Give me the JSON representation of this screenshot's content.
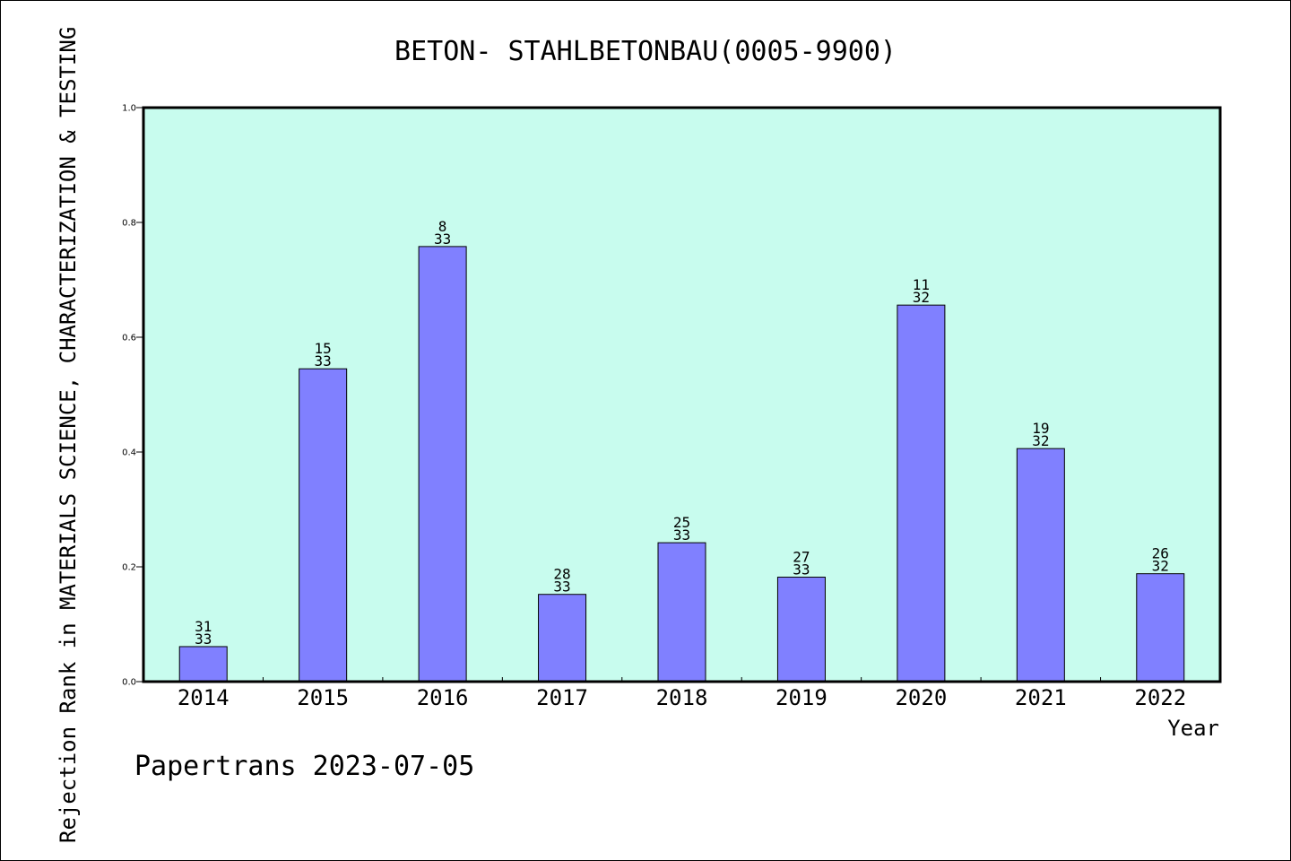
{
  "chart_data": {
    "type": "bar",
    "title": "BETON- STAHLBETONBAU(0005-9900)",
    "xlabel": "Year",
    "ylabel": "Rejection Rank in MATERIALS SCIENCE, CHARACTERIZATION & TESTING",
    "ylim": [
      0,
      1.0
    ],
    "yticks": [
      "0.0",
      "0.2",
      "0.4",
      "0.6",
      "0.8",
      "1.0"
    ],
    "categories": [
      "2014",
      "2015",
      "2016",
      "2017",
      "2018",
      "2019",
      "2020",
      "2021",
      "2022"
    ],
    "values": [
      0.061,
      0.545,
      0.758,
      0.152,
      0.242,
      0.182,
      0.656,
      0.406,
      0.188
    ],
    "labels": [
      {
        "rank": "31",
        "total": "33"
      },
      {
        "rank": "15",
        "total": "33"
      },
      {
        "rank": "8",
        "total": "33"
      },
      {
        "rank": "28",
        "total": "33"
      },
      {
        "rank": "25",
        "total": "33"
      },
      {
        "rank": "27",
        "total": "33"
      },
      {
        "rank": "11",
        "total": "32"
      },
      {
        "rank": "19",
        "total": "32"
      },
      {
        "rank": "26",
        "total": "32"
      }
    ],
    "grid": false,
    "colors": {
      "plot_background": "#c8fcee",
      "bar_fill": "#8080ff",
      "bar_stroke": "#000000"
    }
  },
  "footer": "Papertrans 2023-07-05"
}
